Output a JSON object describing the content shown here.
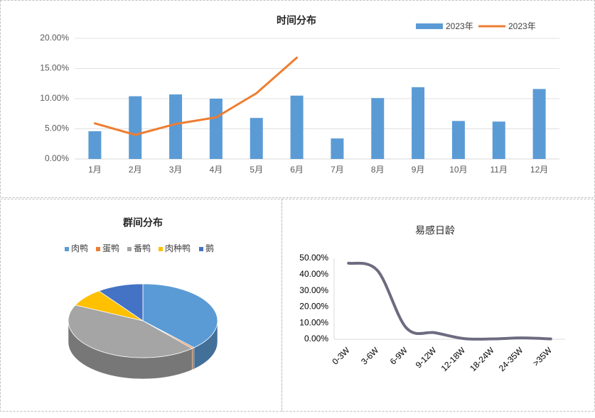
{
  "chart_data": [
    {
      "type": "bar",
      "title": "时间分布",
      "categories": [
        "1月",
        "2月",
        "3月",
        "4月",
        "5月",
        "6月",
        "7月",
        "8月",
        "9月",
        "10月",
        "11月",
        "12月"
      ],
      "series": [
        {
          "name": "2023年",
          "type": "bar",
          "color": "#5b9bd5",
          "values": [
            4.6,
            10.4,
            10.7,
            10.0,
            6.8,
            10.5,
            3.4,
            10.1,
            11.9,
            6.3,
            6.2,
            11.6
          ]
        },
        {
          "name": "2023年",
          "type": "line",
          "color": "#ed7d31",
          "values": [
            5.9,
            4.0,
            5.8,
            6.9,
            10.9,
            16.8,
            null,
            null,
            null,
            null,
            null,
            null
          ]
        }
      ],
      "ylim": [
        0,
        20
      ],
      "yticks": [
        {
          "value": 0,
          "label": "0.00%"
        },
        {
          "value": 5,
          "label": "5.00%"
        },
        {
          "value": 10,
          "label": "10.00%"
        },
        {
          "value": 15,
          "label": "15.00%"
        },
        {
          "value": 20,
          "label": "20.00%"
        }
      ],
      "legend": "top-right"
    },
    {
      "type": "pie",
      "title": "群间分布",
      "categories": [
        "肉鸭",
        "蛋鸭",
        "番鸭",
        "肉种鸭",
        "鹅"
      ],
      "values": [
        38,
        0.5,
        43.5,
        8,
        10
      ],
      "colors": [
        "#5b9bd5",
        "#ed7d31",
        "#a5a5a5",
        "#ffc000",
        "#4472c4"
      ],
      "legend": "top"
    },
    {
      "type": "line",
      "title": "易感日龄",
      "categories": [
        "0-3W",
        "3-6W",
        "6-9W",
        "9-12W",
        "12-18W",
        "18-24W",
        "24-35W",
        ">35W"
      ],
      "values": [
        47,
        42.5,
        7,
        4,
        0.4,
        0.2,
        0.8,
        0.2
      ],
      "color": "#6c6b80",
      "ylim": [
        0,
        50
      ],
      "yticks": [
        {
          "value": 0,
          "label": "0.00%"
        },
        {
          "value": 10,
          "label": "10.00%"
        },
        {
          "value": 20,
          "label": "20.00%"
        },
        {
          "value": 30,
          "label": "30.00%"
        },
        {
          "value": 40,
          "label": "40.00%"
        },
        {
          "value": 50,
          "label": "50.00%"
        }
      ]
    }
  ]
}
